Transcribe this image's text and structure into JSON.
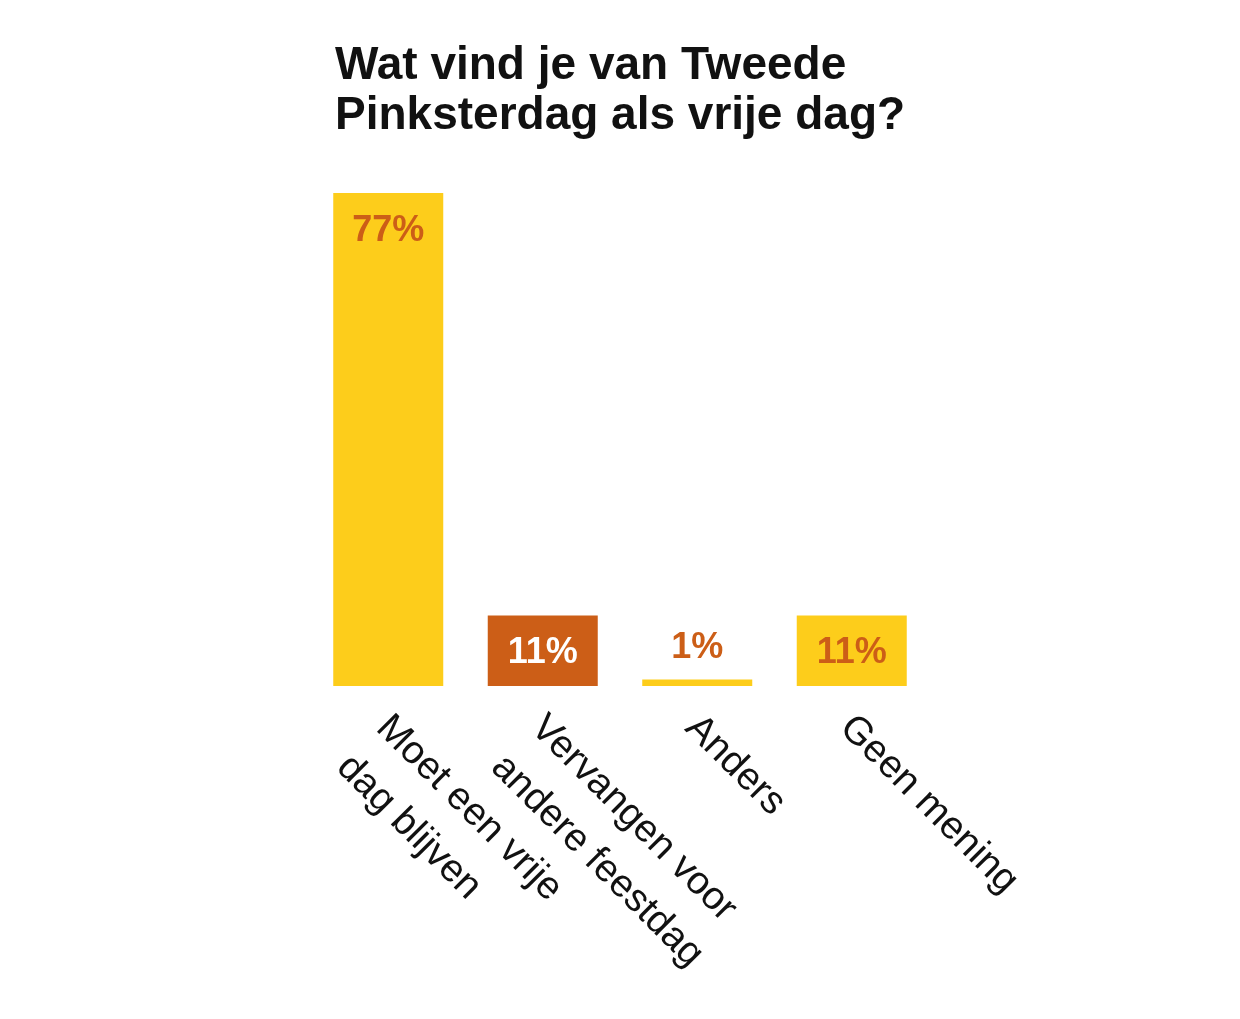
{
  "chart_data": {
    "type": "bar",
    "title": "Wat vind je van Tweede Pinksterdag als vrije dag?",
    "categories": [
      "Moet een vrije dag blijven",
      "Vervangen voor andere feestdag",
      "Anders",
      "Geen mening"
    ],
    "values": [
      77,
      11,
      1,
      11
    ],
    "colors": [
      "#fdcd1b",
      "#cc5e17",
      "#fdcd1b",
      "#fdcd1b"
    ],
    "value_labels": [
      "77%",
      "11%",
      "1%",
      "11%"
    ]
  }
}
